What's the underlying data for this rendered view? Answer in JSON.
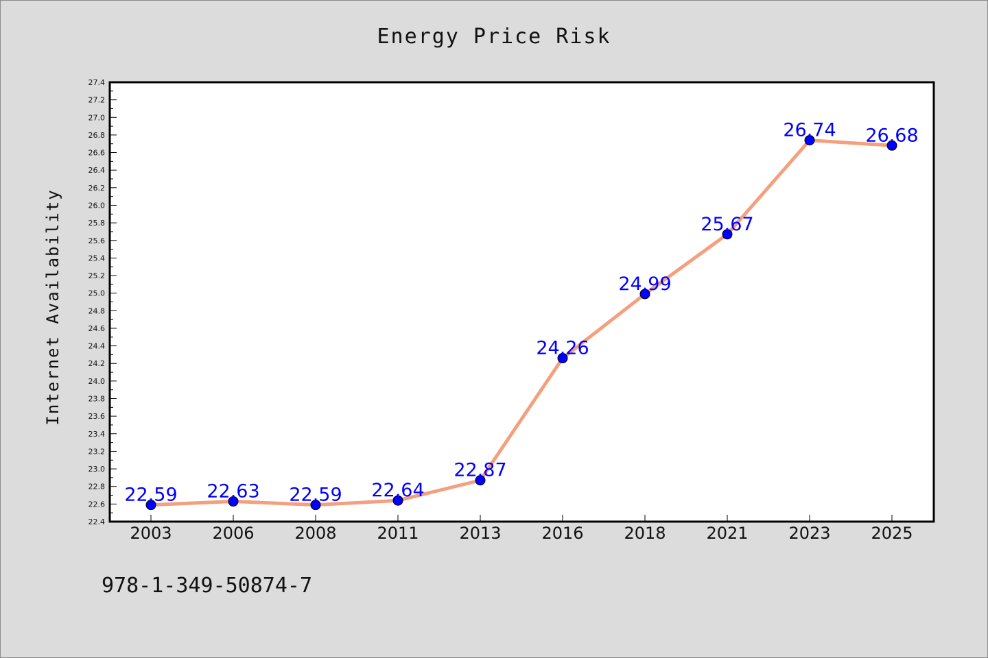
{
  "chart_data": {
    "type": "line",
    "title": "Energy Price Risk",
    "xlabel": "",
    "ylabel": "Internet Availability",
    "categories": [
      "2003",
      "2006",
      "2008",
      "2011",
      "2013",
      "2016",
      "2018",
      "2021",
      "2023",
      "2025"
    ],
    "series": [
      {
        "values": [
          22.59,
          22.63,
          22.59,
          22.64,
          22.87,
          24.26,
          24.99,
          25.67,
          26.74,
          26.68
        ],
        "labels": [
          "22.59",
          "22.63",
          "22.59",
          "22.64",
          "22.87",
          "24.26",
          "24.99",
          "25.67",
          "26.74",
          "26.68"
        ]
      }
    ],
    "ylim": [
      22.4,
      27.4
    ],
    "yticks": [
      "22.4",
      "22.6",
      "22.8",
      "23.0",
      "23.2",
      "23.4",
      "23.6",
      "23.8",
      "24.0",
      "24.2",
      "24.4",
      "24.6",
      "24.8",
      "25.0",
      "25.2",
      "25.4",
      "25.6",
      "25.8",
      "26.0",
      "26.2",
      "26.4",
      "26.6",
      "26.8",
      "27.0",
      "27.2",
      "27.4"
    ],
    "grid": false,
    "legend": "none",
    "colors": {
      "line": "#f4a07e",
      "marker": "#0000ff",
      "data_label": "#0000ff",
      "plot_background": "#ffffff",
      "figure_background": "#dcdcdc"
    }
  },
  "footer": {
    "text": "978-1-349-50874-7"
  }
}
